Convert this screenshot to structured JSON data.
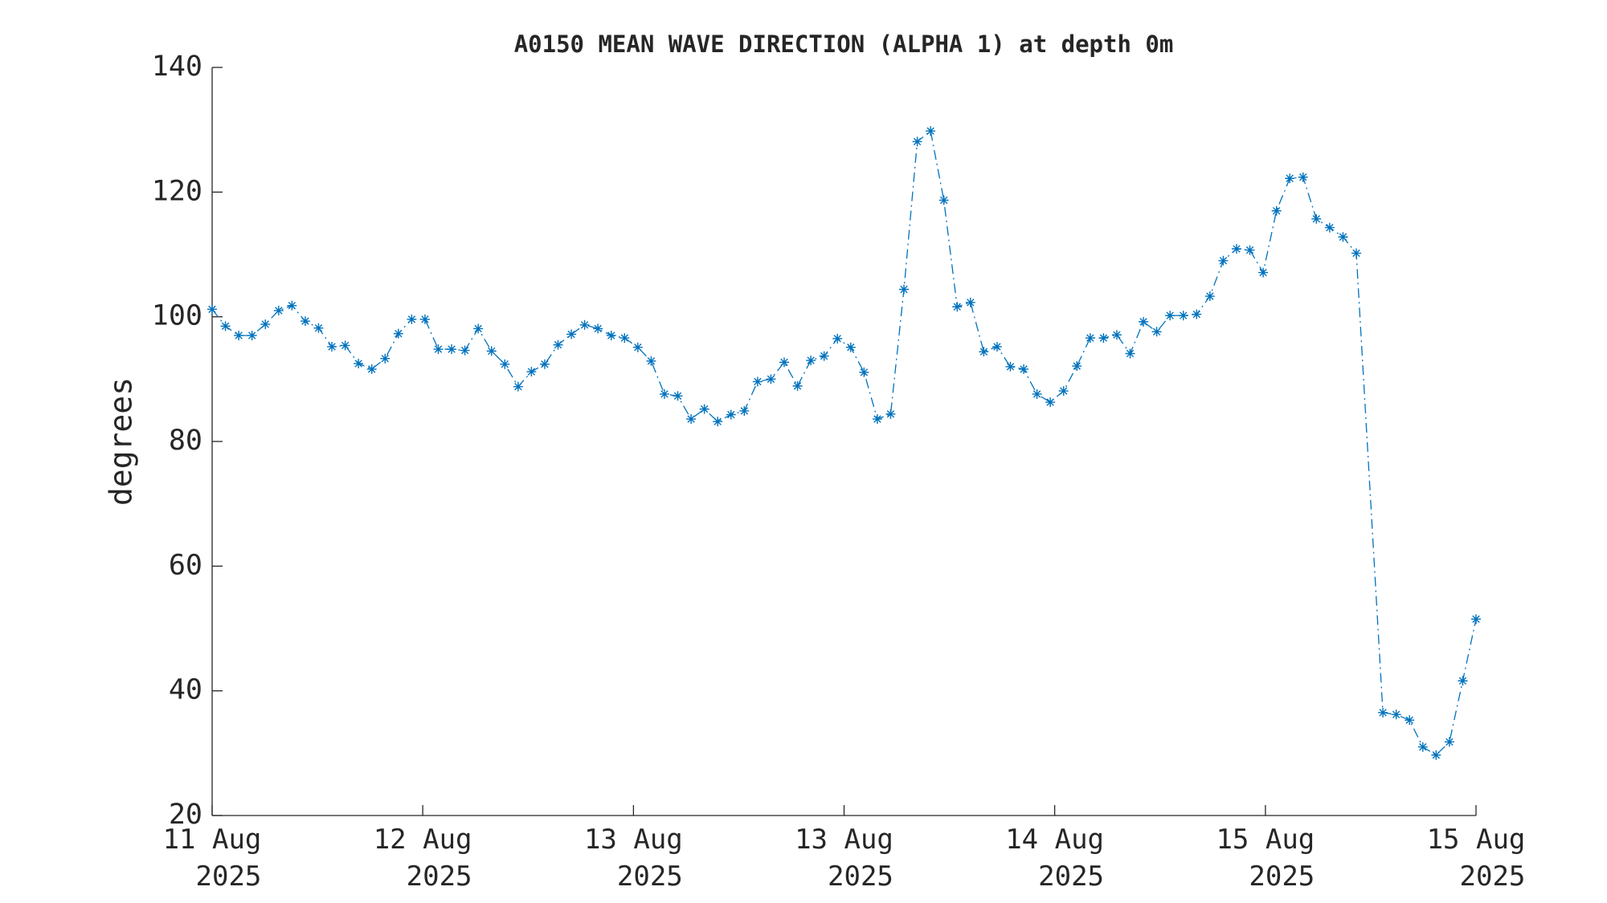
{
  "chart_data": {
    "type": "line",
    "title": "A0150 MEAN WAVE DIRECTION (ALPHA 1) at depth 0m",
    "y_label": "degrees",
    "color": "#0072bd",
    "marker": "asterisk",
    "line_style": "dash-dot",
    "x": [
      0,
      1,
      2,
      3,
      4,
      5,
      6,
      7,
      8,
      9,
      10,
      11,
      12,
      13,
      14,
      15,
      16,
      17,
      18,
      19,
      20,
      21,
      22,
      23,
      24,
      25,
      26,
      27,
      28,
      29,
      30,
      31,
      32,
      33,
      34,
      35,
      36,
      37,
      38,
      39,
      40,
      41,
      42,
      43,
      44,
      45,
      46,
      47,
      48,
      49,
      50,
      51,
      52,
      53,
      54,
      55,
      56,
      57,
      58,
      59,
      60,
      61,
      62,
      63,
      64,
      65,
      66,
      67,
      68,
      69,
      70,
      71,
      72,
      73,
      74,
      75,
      76,
      77,
      78,
      79,
      80,
      81,
      82,
      83,
      84,
      85,
      86,
      88,
      89,
      90,
      91,
      92,
      93,
      94,
      95
    ],
    "values": [
      101.2,
      98.5,
      97,
      97,
      98.8,
      101,
      101.8,
      99.3,
      98.2,
      95.2,
      95.4,
      92.5,
      91.6,
      93.3,
      97.3,
      99.6,
      99.6,
      94.8,
      94.8,
      94.6,
      98.1,
      94.5,
      92.4,
      88.8,
      91.2,
      92.4,
      95.5,
      97.2,
      98.7,
      98.1,
      97,
      96.6,
      95.1,
      92.9,
      87.6,
      87.3,
      83.6,
      85.2,
      83.2,
      84.3,
      84.9,
      89.6,
      90,
      92.7,
      88.9,
      93,
      93.7,
      96.5,
      95.1,
      91.1,
      83.6,
      84.4,
      104.4,
      128.1,
      129.8,
      118.7,
      101.6,
      102.3,
      94.4,
      95.2,
      92,
      91.6,
      87.6,
      86.3,
      88.1,
      92.1,
      96.6,
      96.6,
      97.1,
      94.1,
      99.2,
      97.6,
      100.2,
      100.2,
      100.4,
      103.3,
      109,
      110.9,
      110.7,
      107.1,
      117,
      122.2,
      122.4,
      115.7,
      114.3,
      112.8,
      110.2,
      36.5,
      36.2,
      35.3,
      31,
      29.7,
      31.8,
      41.6,
      51.5
    ],
    "xlim": [
      0,
      95
    ],
    "xticks": [
      {
        "value": 0,
        "label": "11 Aug\n2025"
      },
      {
        "value": 15.83,
        "label": "12 Aug\n2025"
      },
      {
        "value": 31.67,
        "label": "13 Aug\n2025"
      },
      {
        "value": 47.5,
        "label": "13 Aug\n2025"
      },
      {
        "value": 63.33,
        "label": "14 Aug\n2025"
      },
      {
        "value": 79.17,
        "label": "15 Aug\n2025"
      },
      {
        "value": 95,
        "label": "15 Aug\n2025"
      }
    ],
    "ylim": [
      20,
      140
    ],
    "yticks": [
      20,
      40,
      60,
      80,
      100,
      120,
      140
    ]
  }
}
